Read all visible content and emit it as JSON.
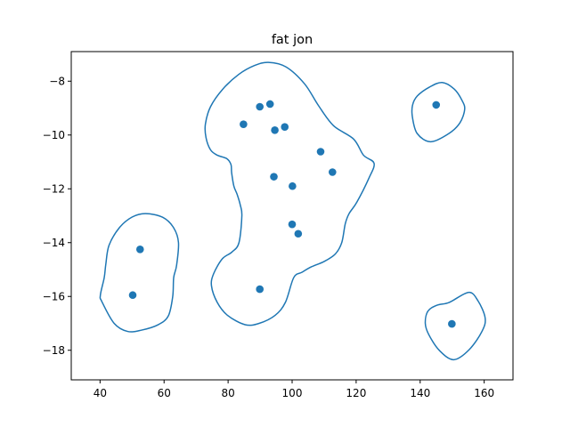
{
  "chart_data": {
    "type": "scatter",
    "title": "fat jon",
    "xlabel": "",
    "ylabel": "",
    "xlim": [
      31,
      169
    ],
    "ylim": [
      -19.1,
      -6.9
    ],
    "grid": false,
    "legend": "none",
    "x_ticks": [
      40,
      60,
      80,
      100,
      120,
      140,
      160
    ],
    "y_ticks": [
      -8,
      -10,
      -12,
      -14,
      -16,
      -18
    ],
    "x_tick_labels": [
      "40",
      "60",
      "80",
      "100",
      "120",
      "140",
      "160"
    ],
    "y_tick_labels": [
      "−8",
      "−10",
      "−12",
      "−14",
      "−16",
      "−18"
    ],
    "marker_color": "#1f77b4",
    "contour_color": "#1f77b4",
    "points": [
      {
        "x": 52.5,
        "y": -14.25
      },
      {
        "x": 50.2,
        "y": -15.95
      },
      {
        "x": 84.8,
        "y": -9.6
      },
      {
        "x": 89.9,
        "y": -8.95
      },
      {
        "x": 93.1,
        "y": -8.85
      },
      {
        "x": 94.6,
        "y": -9.82
      },
      {
        "x": 97.7,
        "y": -9.7
      },
      {
        "x": 108.9,
        "y": -10.62
      },
      {
        "x": 112.6,
        "y": -11.38
      },
      {
        "x": 94.3,
        "y": -11.55
      },
      {
        "x": 100.1,
        "y": -11.9
      },
      {
        "x": 100.0,
        "y": -13.32
      },
      {
        "x": 101.9,
        "y": -13.67
      },
      {
        "x": 89.9,
        "y": -15.73
      },
      {
        "x": 145.0,
        "y": -8.88
      },
      {
        "x": 149.9,
        "y": -17.02
      }
    ],
    "contours": [
      {
        "points": [
          [
            54.2,
            -12.92
          ],
          [
            59.6,
            -13.06
          ],
          [
            63.0,
            -13.45
          ],
          [
            64.5,
            -14.0
          ],
          [
            63.9,
            -14.85
          ],
          [
            63.0,
            -15.3
          ],
          [
            62.7,
            -16.0
          ],
          [
            61.3,
            -16.73
          ],
          [
            58.0,
            -17.06
          ],
          [
            53.0,
            -17.25
          ],
          [
            48.6,
            -17.3
          ],
          [
            44.4,
            -17.0
          ],
          [
            40.6,
            -16.2
          ],
          [
            40.1,
            -15.95
          ],
          [
            41.3,
            -15.3
          ],
          [
            41.8,
            -14.8
          ],
          [
            42.8,
            -14.1
          ],
          [
            46.0,
            -13.45
          ],
          [
            50.0,
            -13.05
          ],
          [
            54.2,
            -12.92
          ]
        ]
      },
      {
        "points": [
          [
            92.6,
            -7.3
          ],
          [
            98.1,
            -7.47
          ],
          [
            103.9,
            -8.1
          ],
          [
            108.2,
            -8.9
          ],
          [
            112.9,
            -9.65
          ],
          [
            119.2,
            -10.15
          ],
          [
            122.3,
            -10.75
          ],
          [
            125.6,
            -11.05
          ],
          [
            124.0,
            -11.6
          ],
          [
            120.2,
            -12.5
          ],
          [
            117.8,
            -12.92
          ],
          [
            116.6,
            -13.3
          ],
          [
            115.5,
            -14.0
          ],
          [
            113.5,
            -14.42
          ],
          [
            110.0,
            -14.7
          ],
          [
            106.0,
            -14.9
          ],
          [
            103.1,
            -15.1
          ],
          [
            100.5,
            -15.3
          ],
          [
            97.9,
            -16.22
          ],
          [
            94.7,
            -16.7
          ],
          [
            89.7,
            -17.0
          ],
          [
            85.3,
            -17.05
          ],
          [
            79.8,
            -16.7
          ],
          [
            76.6,
            -16.22
          ],
          [
            74.8,
            -15.6
          ],
          [
            75.5,
            -15.15
          ],
          [
            78.2,
            -14.6
          ],
          [
            81.2,
            -14.35
          ],
          [
            83.4,
            -14.0
          ],
          [
            84.3,
            -13.0
          ],
          [
            83.8,
            -12.6
          ],
          [
            82.8,
            -12.2
          ],
          [
            81.8,
            -11.9
          ],
          [
            81.1,
            -11.4
          ],
          [
            80.9,
            -11.1
          ],
          [
            79.6,
            -10.88
          ],
          [
            76.6,
            -10.75
          ],
          [
            74.5,
            -10.55
          ],
          [
            73.1,
            -10.1
          ],
          [
            72.9,
            -9.6
          ],
          [
            74.5,
            -8.95
          ],
          [
            78.3,
            -8.3
          ],
          [
            83.3,
            -7.75
          ],
          [
            88.2,
            -7.42
          ],
          [
            92.6,
            -7.3
          ]
        ]
      },
      {
        "points": [
          [
            146.9,
            -8.05
          ],
          [
            150.7,
            -8.3
          ],
          [
            153.1,
            -8.72
          ],
          [
            153.9,
            -9.05
          ],
          [
            152.4,
            -9.55
          ],
          [
            148.9,
            -9.95
          ],
          [
            143.3,
            -10.25
          ],
          [
            139.1,
            -9.95
          ],
          [
            137.6,
            -9.35
          ],
          [
            137.6,
            -8.9
          ],
          [
            139.1,
            -8.55
          ],
          [
            142.9,
            -8.22
          ],
          [
            146.9,
            -8.05
          ]
        ]
      },
      {
        "points": [
          [
            149.1,
            -16.22
          ],
          [
            155.1,
            -15.85
          ],
          [
            158.0,
            -16.15
          ],
          [
            160.3,
            -16.8
          ],
          [
            159.3,
            -17.3
          ],
          [
            155.3,
            -17.98
          ],
          [
            150.5,
            -18.35
          ],
          [
            146.1,
            -18.02
          ],
          [
            142.7,
            -17.42
          ],
          [
            141.6,
            -17.0
          ],
          [
            142.4,
            -16.55
          ],
          [
            145.2,
            -16.33
          ],
          [
            149.1,
            -16.22
          ]
        ]
      }
    ]
  }
}
